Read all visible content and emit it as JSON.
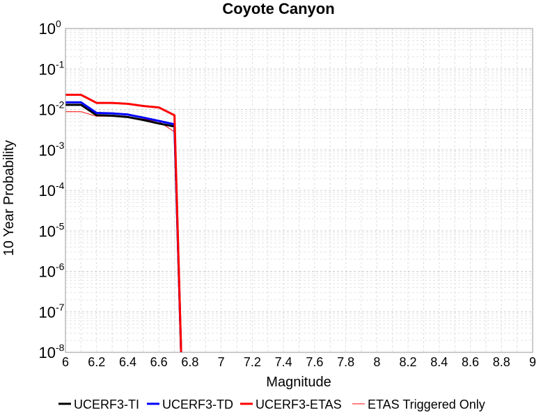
{
  "chart_data": {
    "type": "line",
    "title": "Coyote Canyon",
    "xlabel": "Magnitude",
    "ylabel": "10 Year Probability",
    "xlim": [
      6,
      9
    ],
    "ylim": [
      1e-08,
      1
    ],
    "yscale": "log",
    "grid": true,
    "legend_placement": "bottom",
    "xticks": [
      "6",
      "6.2",
      "6.4",
      "6.6",
      "6.8",
      "7",
      "7.2",
      "7.4",
      "7.6",
      "7.8",
      "8",
      "8.2",
      "8.4",
      "8.6",
      "8.8",
      "9"
    ],
    "yticks": [
      {
        "base": "10",
        "exp": "0"
      },
      {
        "base": "10",
        "exp": "-1"
      },
      {
        "base": "10",
        "exp": "-2"
      },
      {
        "base": "10",
        "exp": "-3"
      },
      {
        "base": "10",
        "exp": "-4"
      },
      {
        "base": "10",
        "exp": "-5"
      },
      {
        "base": "10",
        "exp": "-6"
      },
      {
        "base": "10",
        "exp": "-7"
      },
      {
        "base": "10",
        "exp": "-8"
      }
    ],
    "series": [
      {
        "name": "UCERF3-TI",
        "color": "#000000",
        "width": 3,
        "x": [
          6.0,
          6.1,
          6.2,
          6.3,
          6.4,
          6.5,
          6.6,
          6.7,
          6.75
        ],
        "y": [
          0.013,
          0.013,
          0.0072,
          0.007,
          0.0065,
          0.0055,
          0.0045,
          0.0038,
          1e-09
        ]
      },
      {
        "name": "UCERF3-TD",
        "color": "#0000ff",
        "width": 3,
        "x": [
          6.0,
          6.1,
          6.2,
          6.3,
          6.4,
          6.5,
          6.6,
          6.7,
          6.75
        ],
        "y": [
          0.015,
          0.015,
          0.0082,
          0.008,
          0.0075,
          0.0063,
          0.0052,
          0.0043,
          1e-09
        ]
      },
      {
        "name": "UCERF3-ETAS",
        "color": "#ff0000",
        "width": 3,
        "x": [
          6.0,
          6.1,
          6.2,
          6.3,
          6.4,
          6.5,
          6.6,
          6.7,
          6.75
        ],
        "y": [
          0.023,
          0.023,
          0.0145,
          0.0145,
          0.0138,
          0.0122,
          0.0112,
          0.0072,
          1e-09
        ]
      },
      {
        "name": "ETAS Triggered Only",
        "color": "#ff0000",
        "width": 1,
        "x": [
          6.0,
          6.1,
          6.2,
          6.3,
          6.4,
          6.5,
          6.6,
          6.7,
          6.75
        ],
        "y": [
          0.0088,
          0.0088,
          0.0068,
          0.0068,
          0.0064,
          0.0058,
          0.005,
          0.0028,
          1e-09
        ]
      }
    ]
  }
}
